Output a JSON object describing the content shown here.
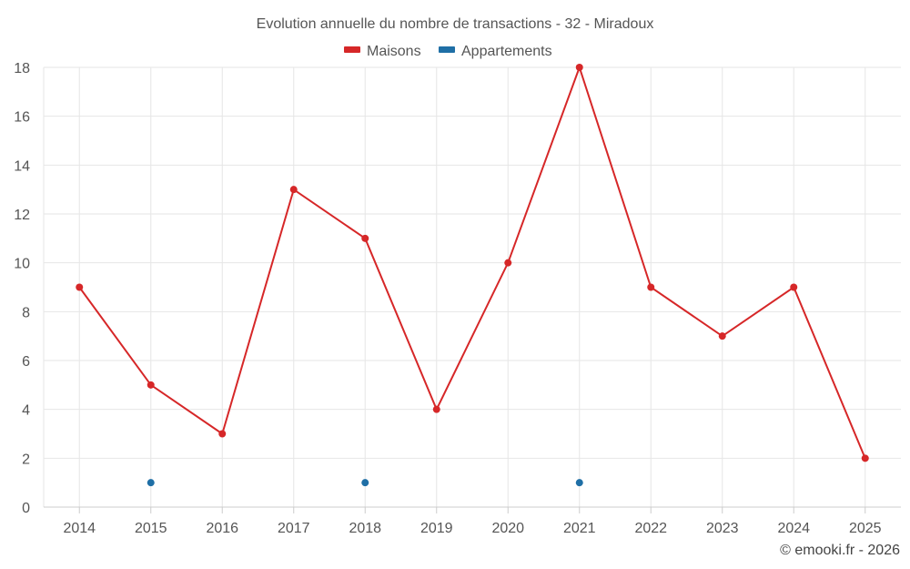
{
  "chart_data": {
    "type": "line",
    "title": "Evolution annuelle du nombre de transactions - 32 - Miradoux",
    "categories": [
      "2014",
      "2015",
      "2016",
      "2017",
      "2018",
      "2019",
      "2020",
      "2021",
      "2022",
      "2023",
      "2024",
      "2025"
    ],
    "series": [
      {
        "name": "Maisons",
        "color": "#d62728",
        "values": [
          9,
          5,
          3,
          13,
          11,
          4,
          10,
          18,
          9,
          7,
          9,
          2
        ]
      },
      {
        "name": "Appartements",
        "color": "#1f6fa6",
        "values": [
          null,
          1,
          null,
          null,
          1,
          null,
          null,
          1,
          null,
          null,
          null,
          null
        ]
      }
    ],
    "ylim": [
      0,
      18
    ],
    "yticks": [
      0,
      2,
      4,
      6,
      8,
      10,
      12,
      14,
      16,
      18
    ],
    "grid": true,
    "legend_position": "top-center",
    "credit": "© emooki.fr - 2026"
  }
}
